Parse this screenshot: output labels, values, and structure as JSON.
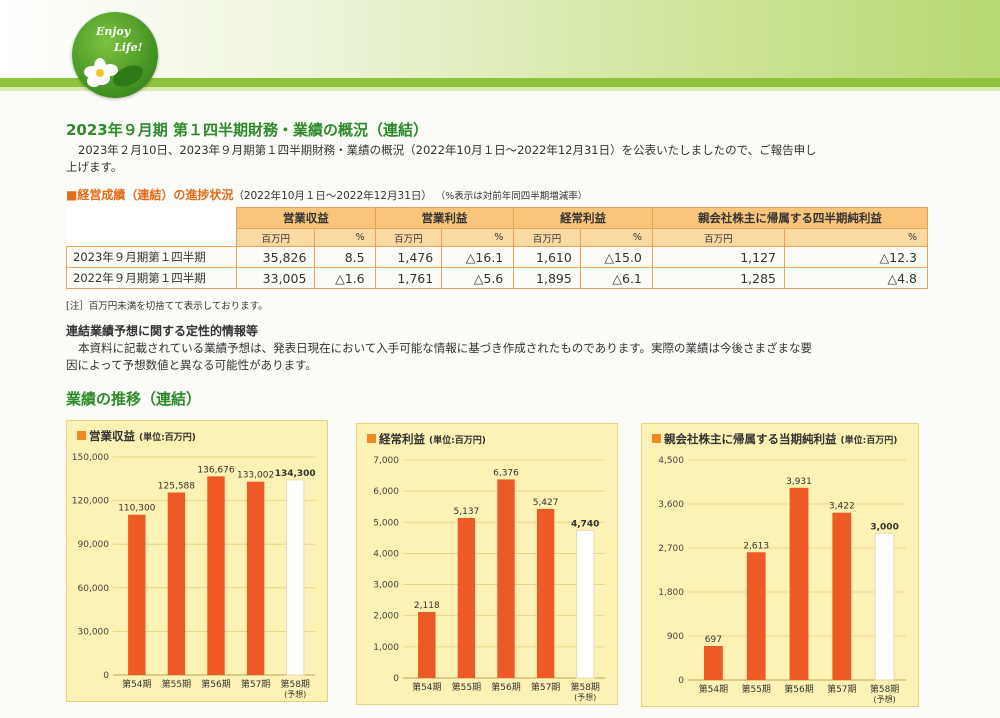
{
  "logo": {
    "line1": "Enjoy",
    "line2": "Life!"
  },
  "title": "2023年９月期 第１四半期財務・業績の概況（連結）",
  "intro_line1": "2023年２月10日、2023年９月期第１四半期財務・業績の概況（2022年10月１日～2022年12月31日）を公表いたしましたので、ご報告申し",
  "intro_line2": "上げます。",
  "section1": {
    "label": "■経営成績（連結）の進捗状況",
    "period": "（2022年10月１日～2022年12月31日）",
    "note": "（%表示は対前年同四半期増減率）"
  },
  "table": {
    "headers": [
      "営業収益",
      "営業利益",
      "経常利益",
      "親会社株主に帰属する四半期純利益"
    ],
    "unit": "百万円",
    "pct": "%",
    "rows": [
      {
        "label": "2023年９月期第１四半期",
        "cells": [
          "35,826",
          "8.5",
          "1,476",
          "△16.1",
          "1,610",
          "△15.0",
          "1,127",
          "△12.3"
        ]
      },
      {
        "label": "2022年９月期第１四半期",
        "cells": [
          "33,005",
          "△1.6",
          "1,761",
          "△5.6",
          "1,895",
          "△6.1",
          "1,285",
          "△4.8"
        ]
      }
    ]
  },
  "table_note": "[注］百万円未満を切捨てて表示しております。",
  "forecast": {
    "heading": "連結業績予想に関する定性的情報等",
    "line1": "本資料に記載されている業績予想は、発表日現在において入手可能な情報に基づき作成されたものであります。実際の業績は今後さまざまな要",
    "line2": "因によって予想数値と異なる可能性があります。"
  },
  "trend_heading": "業績の推移（連結）",
  "colors": {
    "bar": "#ed5a25",
    "forecast_bar": "#ffffff",
    "chart_bg": "#fdf2b5",
    "accent_green": "#2d8a2b"
  },
  "chart_data": [
    {
      "type": "bar",
      "title": "営業収益",
      "unit": "(単位:百万円)",
      "categories": [
        "第54期",
        "第55期",
        "第56期",
        "第57期",
        "第58期"
      ],
      "forecast_note": "(予想)",
      "values": [
        110300,
        125588,
        136676,
        133002,
        134300
      ],
      "value_labels": [
        "110,300",
        "125,588",
        "136,676",
        "133,002",
        "134,300"
      ],
      "forecast_index": 4,
      "yticks": [
        "0",
        "30,000",
        "60,000",
        "90,000",
        "120,000",
        "150,000"
      ],
      "ylim": [
        0,
        150000
      ]
    },
    {
      "type": "bar",
      "title": "経常利益",
      "unit": "(単位:百万円)",
      "categories": [
        "第54期",
        "第55期",
        "第56期",
        "第57期",
        "第58期"
      ],
      "forecast_note": "(予想)",
      "values": [
        2118,
        5137,
        6376,
        5427,
        4740
      ],
      "value_labels": [
        "2,118",
        "5,137",
        "6,376",
        "5,427",
        "4,740"
      ],
      "forecast_index": 4,
      "yticks": [
        "0",
        "1,000",
        "2,000",
        "3,000",
        "4,000",
        "5,000",
        "6,000",
        "7,000"
      ],
      "ylim": [
        0,
        7000
      ]
    },
    {
      "type": "bar",
      "title": "親会社株主に帰属する当期純利益",
      "unit": "(単位:百万円)",
      "categories": [
        "第54期",
        "第55期",
        "第56期",
        "第57期",
        "第58期"
      ],
      "forecast_note": "(予想)",
      "values": [
        697,
        2613,
        3931,
        3422,
        3000
      ],
      "value_labels": [
        "697",
        "2,613",
        "3,931",
        "3,422",
        "3,000"
      ],
      "forecast_index": 4,
      "yticks": [
        "0",
        "900",
        "1,800",
        "2,700",
        "3,600",
        "4,500"
      ],
      "ylim": [
        0,
        4500
      ]
    }
  ]
}
